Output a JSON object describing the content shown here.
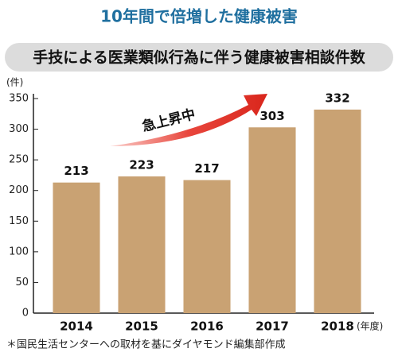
{
  "chart_data": {
    "type": "bar",
    "title": "10年間で倍増した健康被害",
    "subtitle": "手技による医業類似行為に伴う健康被害相談件数",
    "y_label": "(件)",
    "x_label": "(年度)",
    "annotation": "急上昇中",
    "source": "＊国民生活センターへの取材を基にダイヤモンド編集部作成",
    "categories": [
      "2014",
      "2015",
      "2016",
      "2017",
      "2018"
    ],
    "values": [
      213,
      223,
      217,
      303,
      332
    ],
    "color": "#c9a273",
    "ylim": [
      0,
      350
    ],
    "yticks": [
      0,
      50,
      100,
      150,
      200,
      250,
      300,
      350
    ],
    "grid": false
  }
}
